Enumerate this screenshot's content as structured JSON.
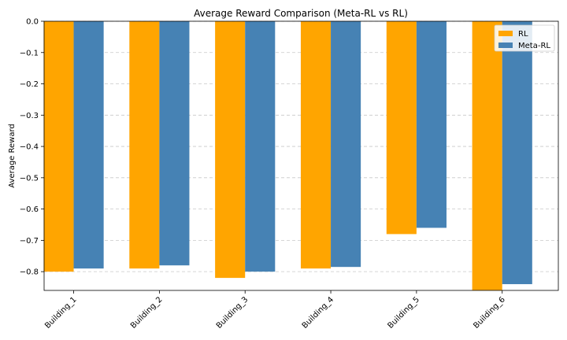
{
  "chart_data": {
    "type": "bar",
    "title": "Average Reward Comparison (Meta-RL vs RL)",
    "xlabel": "",
    "ylabel": "Average Reward",
    "categories": [
      "Building_1",
      "Building_2",
      "Building_3",
      "Building_4",
      "Building_5",
      "Building_6"
    ],
    "series": [
      {
        "name": "RL",
        "color": "#ffa500",
        "values": [
          -0.8,
          -0.79,
          -0.82,
          -0.79,
          -0.68,
          -0.86
        ]
      },
      {
        "name": "Meta-RL",
        "color": "#4682b4",
        "values": [
          -0.79,
          -0.78,
          -0.8,
          -0.785,
          -0.66,
          -0.84
        ]
      }
    ],
    "ylim": [
      -0.86,
      0.0
    ],
    "yticks": [
      0.0,
      -0.1,
      -0.2,
      -0.3,
      -0.4,
      -0.5,
      -0.6,
      -0.7,
      -0.8
    ],
    "ytick_labels": [
      "0.0",
      "−0.1",
      "−0.2",
      "−0.3",
      "−0.4",
      "−0.5",
      "−0.6",
      "−0.7",
      "−0.8"
    ],
    "grid": "y-dashed",
    "legend_position": "top-right"
  }
}
